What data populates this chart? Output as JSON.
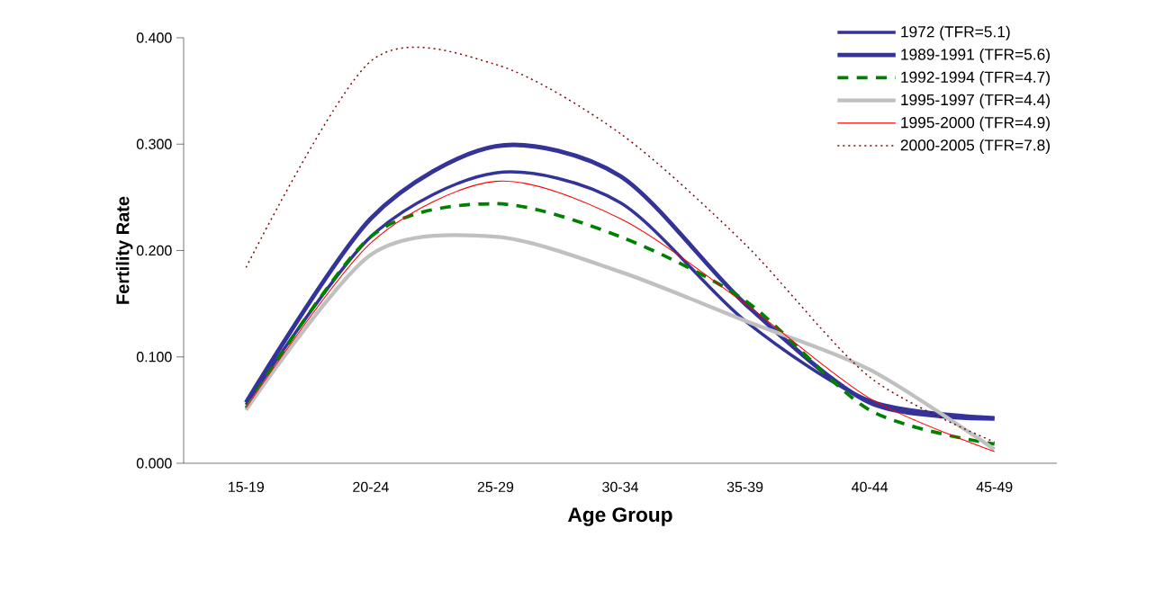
{
  "chart_data": {
    "type": "line",
    "xlabel": "Age Group",
    "ylabel": "Fertility Rate",
    "categories": [
      "15-19",
      "20-24",
      "25-29",
      "30-34",
      "35-39",
      "40-44",
      "45-49"
    ],
    "series": [
      {
        "name": "1972 (TFR=5.1)",
        "color": "#333399",
        "line_style": "solid",
        "values": [
          0.055,
          0.213,
          0.273,
          0.245,
          0.134,
          0.059,
          0.043
        ]
      },
      {
        "name": "1989-1991 (TFR=5.6)",
        "color": "#333399",
        "line_style": "solid",
        "values": [
          0.057,
          0.23,
          0.298,
          0.27,
          0.15,
          0.057,
          0.042
        ]
      },
      {
        "name": "1992-1994 (TFR=4.7)",
        "color": "#008000",
        "line_style": "dashed",
        "values": [
          0.052,
          0.213,
          0.244,
          0.213,
          0.153,
          0.05,
          0.018
        ]
      },
      {
        "name": "1995-1997 (TFR=4.4)",
        "color": "#c0c0c0",
        "line_style": "solid",
        "values": [
          0.05,
          0.196,
          0.213,
          0.18,
          0.134,
          0.088,
          0.013
        ]
      },
      {
        "name": "1995-2000 (TFR=4.9)",
        "color": "#ff0000",
        "line_style": "solid",
        "values": [
          0.052,
          0.207,
          0.265,
          0.23,
          0.15,
          0.061,
          0.011
        ]
      },
      {
        "name": "2000-2005 (TFR=7.8)",
        "color": "#800000",
        "line_style": "dotted",
        "values": [
          0.184,
          0.378,
          0.375,
          0.31,
          0.206,
          0.081,
          0.02
        ]
      }
    ],
    "ylim": [
      0,
      0.4
    ],
    "yticks": [
      {
        "value": 0,
        "label": "0.000"
      },
      {
        "value": 0.1,
        "label": "0.100"
      },
      {
        "value": 0.2,
        "label": "0.200"
      },
      {
        "value": 0.3,
        "label": "0.300"
      },
      {
        "value": 0.4,
        "label": "0.400"
      }
    ],
    "grid": false,
    "legend": "top right"
  }
}
